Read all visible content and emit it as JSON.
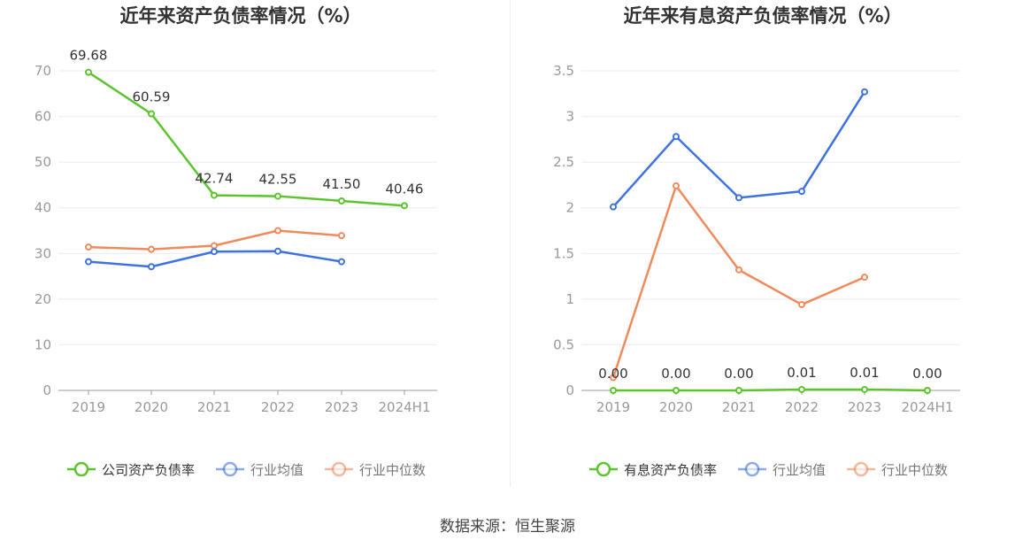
{
  "footer": {
    "source": "数据来源：恒生聚源"
  },
  "colors": {
    "company": "#5cc42d",
    "average": "#3e72e0",
    "median": "#f08a5d",
    "axis": "#999999",
    "grid": "#e8ebf5"
  },
  "chart_data": [
    {
      "type": "line",
      "title": "近年来资产负债率情况（%）",
      "categories": [
        "2019",
        "2020",
        "2021",
        "2022",
        "2023",
        "2024H1"
      ],
      "yticks": [
        "0",
        "10",
        "20",
        "30",
        "40",
        "50",
        "60",
        "70"
      ],
      "ylim": [
        0,
        70
      ],
      "series": [
        {
          "name": "公司资产负债率",
          "color": "#5cc42d",
          "values": [
            69.68,
            60.59,
            42.74,
            42.55,
            41.5,
            40.46
          ],
          "labels": [
            "69.68",
            "60.59",
            "42.74",
            "42.55",
            "41.50",
            "40.46"
          ]
        },
        {
          "name": "行业均值",
          "color": "#3e72e0",
          "values": [
            28.2,
            27.1,
            30.4,
            30.5,
            28.2,
            null
          ]
        },
        {
          "name": "行业中位数",
          "color": "#f08a5d",
          "values": [
            31.4,
            30.9,
            31.7,
            35.0,
            33.9,
            null
          ]
        }
      ],
      "legend": "bottom"
    },
    {
      "type": "line",
      "title": "近年来有息资产负债率情况（%）",
      "categories": [
        "2019",
        "2020",
        "2021",
        "2022",
        "2023",
        "2024H1"
      ],
      "yticks": [
        "0",
        "0.5",
        "1",
        "1.5",
        "2",
        "2.5",
        "3",
        "3.5"
      ],
      "ylim": [
        0,
        3.5
      ],
      "series": [
        {
          "name": "有息资产负债率",
          "color": "#5cc42d",
          "values": [
            0.0,
            0.0,
            0.0,
            0.01,
            0.01,
            0.0
          ],
          "labels": [
            "0.00",
            "0.00",
            "0.00",
            "0.01",
            "0.01",
            "0.00"
          ]
        },
        {
          "name": "行业均值",
          "color": "#3e72e0",
          "values": [
            2.01,
            2.78,
            2.11,
            2.18,
            3.27,
            null
          ]
        },
        {
          "name": "行业中位数",
          "color": "#f08a5d",
          "values": [
            0.14,
            2.24,
            1.32,
            0.94,
            1.24,
            null
          ]
        }
      ],
      "legend": "bottom"
    }
  ]
}
